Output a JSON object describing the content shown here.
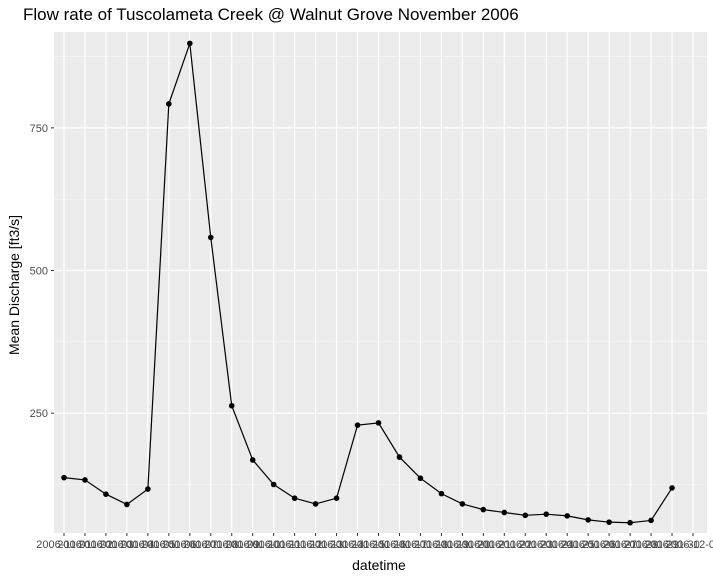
{
  "chart_data": {
    "type": "line",
    "title": "Flow rate of Tuscolameta Creek @ Walnut Grove November 2006",
    "xlabel": "datetime",
    "ylabel": "Mean Discharge [ft3/s]",
    "x": [
      "2006-11-01",
      "2006-11-02",
      "2006-11-03",
      "2006-11-04",
      "2006-11-05",
      "2006-11-06",
      "2006-11-07",
      "2006-11-08",
      "2006-11-09",
      "2006-11-10",
      "2006-11-11",
      "2006-11-12",
      "2006-11-13",
      "2006-11-14",
      "2006-11-15",
      "2006-11-16",
      "2006-11-17",
      "2006-11-18",
      "2006-11-19",
      "2006-11-20",
      "2006-11-21",
      "2006-11-22",
      "2006-11-23",
      "2006-11-24",
      "2006-11-25",
      "2006-11-26",
      "2006-11-27",
      "2006-11-28",
      "2006-11-29",
      "2006-11-30"
    ],
    "x_tick_labels": [
      "2006-11-01",
      "2006-11-02",
      "2006-11-03",
      "2006-11-04",
      "2006-11-05",
      "2006-11-06",
      "2006-11-07",
      "2006-11-08",
      "2006-11-09",
      "2006-11-10",
      "2006-11-11",
      "2006-11-12",
      "2006-11-13",
      "2006-11-14",
      "2006-11-15",
      "2006-11-16",
      "2006-11-17",
      "2006-11-18",
      "2006-11-19",
      "2006-11-20",
      "2006-11-21",
      "2006-11-22",
      "2006-11-23",
      "2006-11-24",
      "2006-11-25",
      "2006-11-26",
      "2006-11-27",
      "2006-11-28",
      "2006-11-29",
      "2006-11-30",
      "2006-12-01"
    ],
    "x_tick_values": [
      "2006-11-01",
      "2006-11-02",
      "2006-11-03",
      "2006-11-04",
      "2006-11-05",
      "2006-11-06",
      "2006-11-07",
      "2006-11-08",
      "2006-11-09",
      "2006-11-10",
      "2006-11-11",
      "2006-11-12",
      "2006-11-13",
      "2006-11-14",
      "2006-11-15",
      "2006-11-16",
      "2006-11-17",
      "2006-11-18",
      "2006-11-19",
      "2006-11-20",
      "2006-11-21",
      "2006-11-22",
      "2006-11-23",
      "2006-11-24",
      "2006-11-25",
      "2006-11-26",
      "2006-11-27",
      "2006-11-28",
      "2006-11-29",
      "2006-11-30",
      "2006-12-01"
    ],
    "series": [
      {
        "values": [
          137,
          133,
          108,
          90,
          117,
          792,
          898,
          558,
          263,
          168,
          125,
          101,
          91,
          101,
          229,
          233,
          173,
          136,
          109,
          91,
          81,
          76,
          71,
          73,
          70,
          63,
          59,
          58,
          62,
          119
        ]
      }
    ],
    "ylim": [
      40,
      918
    ],
    "y_ticks": [
      250,
      500,
      750
    ],
    "grid": true,
    "colors": {
      "panel": "#ebebeb",
      "grid_major": "#ffffff",
      "line": "#000000",
      "point": "#000000"
    }
  }
}
